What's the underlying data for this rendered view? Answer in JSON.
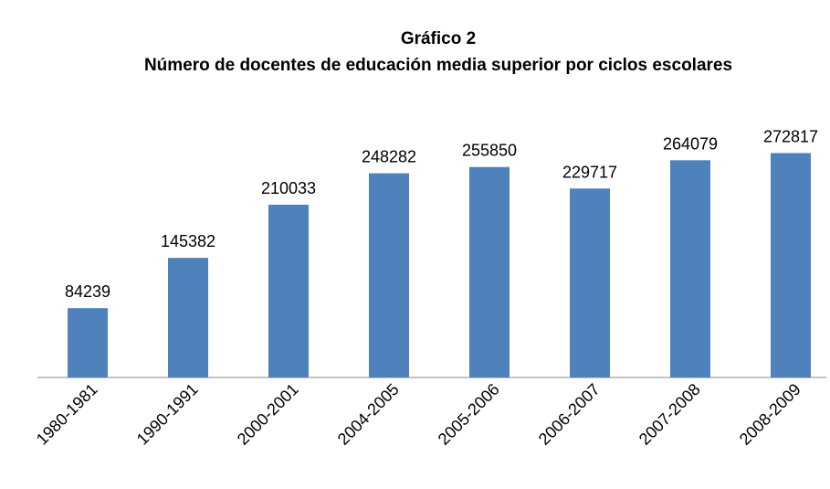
{
  "chart_data": {
    "type": "bar",
    "title": "Gráfico 2",
    "subtitle": "Número de docentes de educación media superior por ciclos escolares",
    "categories": [
      "1980-1981",
      "1990-1991",
      "2000-2001",
      "2004-2005",
      "2005-2006",
      "2006-2007",
      "2007-2008",
      "2008-2009"
    ],
    "values": [
      84239,
      145382,
      210033,
      248282,
      255850,
      229717,
      264079,
      272817
    ],
    "color": "#4f81bd",
    "ylim": [
      0,
      300000
    ]
  }
}
